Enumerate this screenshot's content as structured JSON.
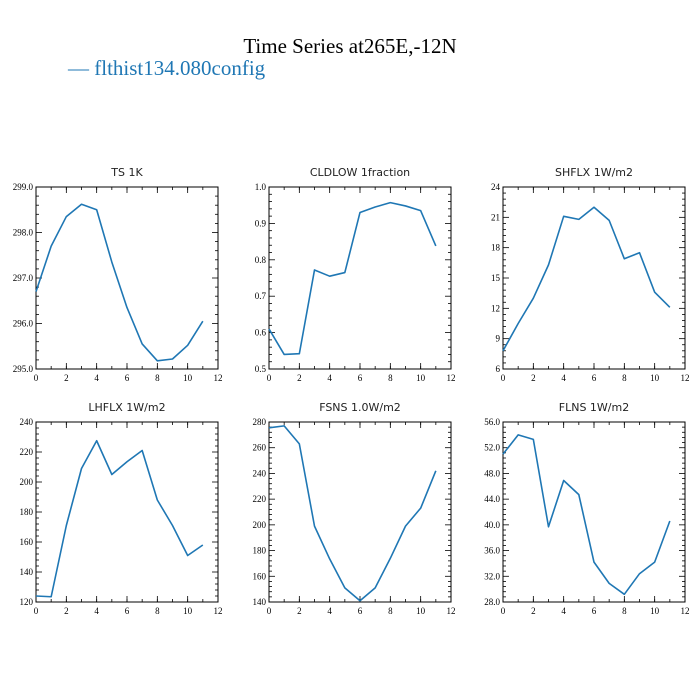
{
  "figure": {
    "title": "Time Series at265E,-12N",
    "legend": "— flthist134.080config",
    "series_color": "#1f77b4"
  },
  "chart_data": [
    {
      "type": "line",
      "title": "TS   1K",
      "x": [
        0,
        1,
        2,
        3,
        4,
        5,
        6,
        7,
        8,
        9,
        10,
        11
      ],
      "values": [
        296.7,
        297.7,
        298.35,
        298.62,
        298.5,
        297.35,
        296.35,
        295.55,
        295.18,
        295.22,
        295.52,
        296.05
      ],
      "xlim": [
        0,
        12
      ],
      "ylim": [
        295,
        299
      ],
      "xticks": [
        0,
        2,
        4,
        6,
        8,
        10,
        12
      ],
      "xtick_labels": [
        "0",
        "2",
        "4",
        "6",
        "8",
        "10",
        "12"
      ],
      "yticks": [
        295,
        296,
        297,
        298,
        299
      ],
      "ytick_labels": [
        "295.0",
        "296.0",
        "297.0",
        "298.0",
        "299.0"
      ]
    },
    {
      "type": "line",
      "title": "CLDLOW   1fraction",
      "x": [
        0,
        1,
        2,
        3,
        4,
        5,
        6,
        7,
        8,
        9,
        10,
        11
      ],
      "values": [
        0.61,
        0.54,
        0.542,
        0.772,
        0.755,
        0.765,
        0.93,
        0.945,
        0.957,
        0.948,
        0.935,
        0.838
      ],
      "xlim": [
        0,
        12
      ],
      "ylim": [
        0.5,
        1.0
      ],
      "xticks": [
        0,
        2,
        4,
        6,
        8,
        10,
        12
      ],
      "xtick_labels": [
        "0",
        "2",
        "4",
        "6",
        "8",
        "10",
        "12"
      ],
      "yticks": [
        0.5,
        0.6,
        0.7,
        0.8,
        0.9,
        1.0
      ],
      "ytick_labels": [
        "0.5",
        "0.6",
        "0.7",
        "0.8",
        "0.9",
        "1.0"
      ]
    },
    {
      "type": "line",
      "title": "SHFLX   1W/m2",
      "x": [
        0,
        1,
        2,
        3,
        4,
        5,
        6,
        7,
        8,
        9,
        10,
        11
      ],
      "values": [
        7.8,
        10.5,
        13,
        16.3,
        21.1,
        20.8,
        22,
        20.7,
        16.9,
        17.5,
        13.6,
        12.1
      ],
      "xlim": [
        0,
        12
      ],
      "ylim": [
        6,
        24
      ],
      "xticks": [
        0,
        2,
        4,
        6,
        8,
        10,
        12
      ],
      "xtick_labels": [
        "0",
        "2",
        "4",
        "6",
        "8",
        "10",
        "12"
      ],
      "yticks": [
        6,
        9,
        12,
        15,
        18,
        21,
        24
      ],
      "ytick_labels": [
        "6",
        "9",
        "12",
        "15",
        "18",
        "21",
        "24"
      ]
    },
    {
      "type": "line",
      "title": "LHFLX   1W/m2",
      "x": [
        0,
        1,
        2,
        3,
        4,
        5,
        6,
        7,
        8,
        9,
        10,
        11
      ],
      "values": [
        124,
        123.5,
        171,
        209,
        227.5,
        205,
        213.5,
        221,
        188,
        171,
        151,
        158
      ],
      "xlim": [
        0,
        12
      ],
      "ylim": [
        120,
        240
      ],
      "xticks": [
        0,
        2,
        4,
        6,
        8,
        10,
        12
      ],
      "xtick_labels": [
        "0",
        "2",
        "4",
        "6",
        "8",
        "10",
        "12"
      ],
      "yticks": [
        120,
        140,
        160,
        180,
        200,
        220,
        240
      ],
      "ytick_labels": [
        "120",
        "140",
        "160",
        "180",
        "200",
        "220",
        "240"
      ]
    },
    {
      "type": "line",
      "title": "FSNS   1.0W/m2",
      "x": [
        0,
        1,
        2,
        3,
        4,
        5,
        6,
        7,
        8,
        9,
        10,
        11
      ],
      "values": [
        275.5,
        277,
        263,
        199,
        173.5,
        151,
        141,
        151,
        174,
        199,
        213,
        242
      ],
      "xlim": [
        0,
        12
      ],
      "ylim": [
        140,
        280
      ],
      "xticks": [
        0,
        2,
        4,
        6,
        8,
        10,
        12
      ],
      "xtick_labels": [
        "0",
        "2",
        "4",
        "6",
        "8",
        "10",
        "12"
      ],
      "yticks": [
        140,
        160,
        180,
        200,
        220,
        240,
        260,
        280
      ],
      "ytick_labels": [
        "140",
        "160",
        "180",
        "200",
        "220",
        "240",
        "260",
        "280"
      ]
    },
    {
      "type": "line",
      "title": "FLNS   1W/m2",
      "x": [
        0,
        1,
        2,
        3,
        4,
        5,
        6,
        7,
        8,
        9,
        10,
        11
      ],
      "values": [
        51,
        54,
        53.3,
        39.7,
        46.9,
        44.7,
        34.2,
        30.9,
        29.2,
        32.4,
        34.2,
        40.6
      ],
      "xlim": [
        0,
        12
      ],
      "ylim": [
        28,
        56
      ],
      "xticks": [
        0,
        2,
        4,
        6,
        8,
        10,
        12
      ],
      "xtick_labels": [
        "0",
        "2",
        "4",
        "6",
        "8",
        "10",
        "12"
      ],
      "yticks": [
        28,
        32,
        36,
        40,
        44,
        48,
        52,
        56
      ],
      "ytick_labels": [
        "28.0",
        "32.0",
        "36.0",
        "40.0",
        "44.0",
        "48.0",
        "52.0",
        "56.0"
      ]
    }
  ]
}
